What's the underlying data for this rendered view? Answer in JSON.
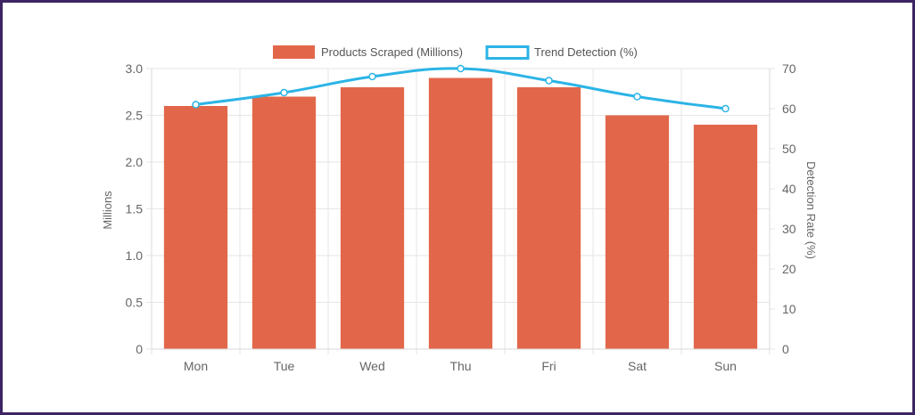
{
  "chart_data": {
    "type": "bar",
    "categories": [
      "Mon",
      "Tue",
      "Wed",
      "Thu",
      "Fri",
      "Sat",
      "Sun"
    ],
    "series": [
      {
        "name": "Products Scraped (Millions)",
        "type": "bar",
        "axis": "left",
        "values": [
          2.6,
          2.7,
          2.8,
          2.9,
          2.8,
          2.5,
          2.4
        ],
        "color": "#e2674a"
      },
      {
        "name": "Trend Detection (%)",
        "type": "line",
        "axis": "right",
        "values": [
          61,
          64,
          68,
          70,
          67,
          63,
          60
        ],
        "color": "#2bb4e6"
      }
    ],
    "y_left": {
      "label": "Millions",
      "ylim": [
        0,
        3.0
      ],
      "ticks": [
        "0",
        "0.5",
        "1.0",
        "1.5",
        "2.0",
        "2.5",
        "3.0"
      ]
    },
    "y_right": {
      "label": "Detection Rate (%)",
      "ylim": [
        0,
        70
      ],
      "ticks": [
        "0",
        "10",
        "20",
        "30",
        "40",
        "50",
        "60",
        "70"
      ]
    },
    "legend_position": "top-center",
    "grid": true
  },
  "colors": {
    "border": "#3d2563",
    "grid": "#e6e6e6",
    "bar": "#e2674a",
    "line": "#2bb4e6"
  }
}
